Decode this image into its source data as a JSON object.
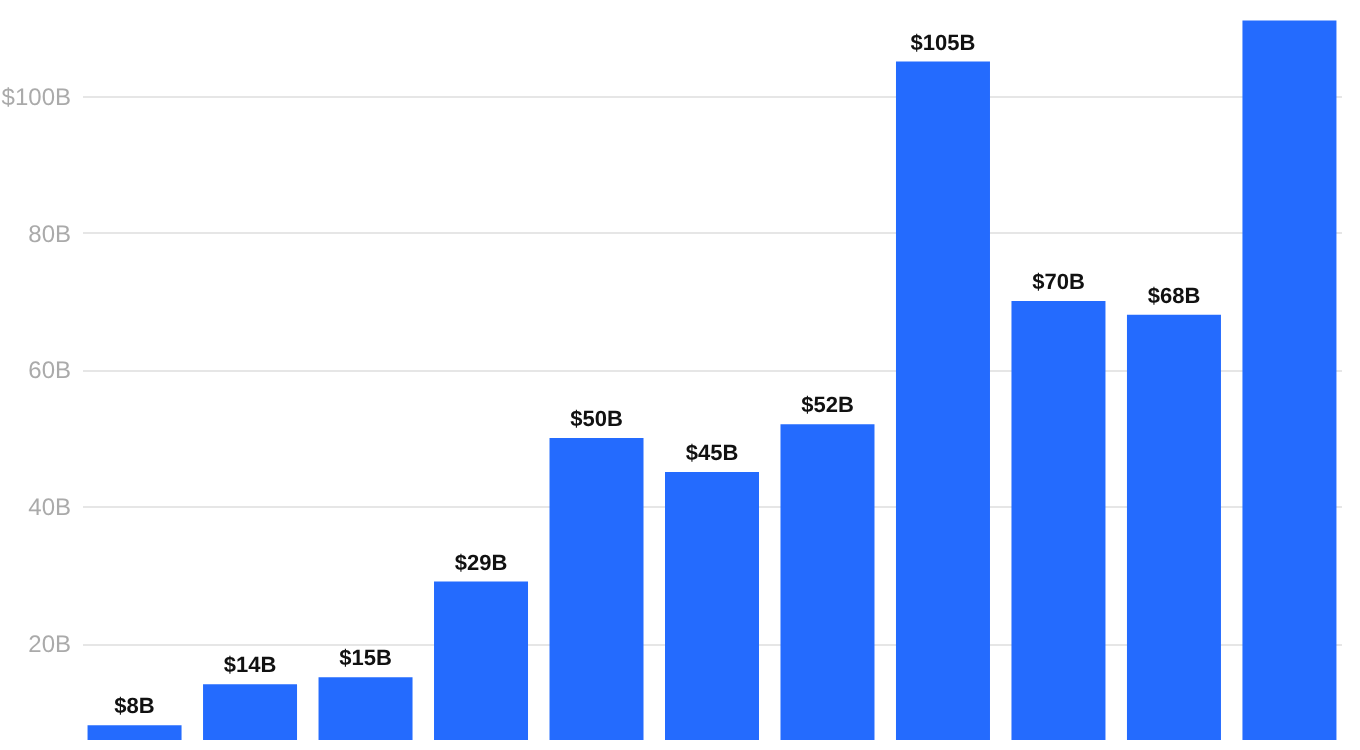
{
  "chart_data": {
    "type": "bar",
    "categories": [
      null,
      null,
      null,
      null,
      null,
      null,
      null,
      null,
      null,
      null,
      null
    ],
    "values": [
      8,
      14,
      15,
      29,
      50,
      45,
      52,
      105,
      70,
      68,
      111
    ],
    "value_labels": [
      "$8B",
      "$14B",
      "$15B",
      "$29B",
      "$50B",
      "$45B",
      "$52B",
      "$105B",
      "$70B",
      "$68B",
      null
    ],
    "color": "#246bfe",
    "ylim": [
      0,
      114
    ],
    "yticks": [
      {
        "value": 20,
        "label": "20B"
      },
      {
        "value": 40,
        "label": "40B"
      },
      {
        "value": 60,
        "label": "60B"
      },
      {
        "value": 80,
        "label": "80B"
      },
      {
        "value": 100,
        "label": "$100B"
      }
    ],
    "grid": "y",
    "tick_labels": "y"
  }
}
